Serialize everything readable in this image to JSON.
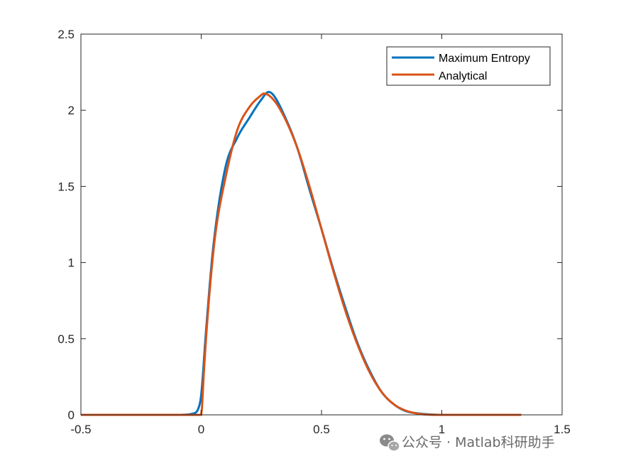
{
  "chart_data": {
    "type": "line",
    "title": "",
    "xlabel": "",
    "ylabel": "",
    "xlim": [
      -0.5,
      1.5
    ],
    "ylim": [
      0,
      2.5
    ],
    "xticks": [
      -0.5,
      0,
      0.5,
      1,
      1.5
    ],
    "xtick_labels": [
      "-0.5",
      "0",
      "0.5",
      "1",
      "1.5"
    ],
    "yticks": [
      0,
      0.5,
      1,
      1.5,
      2,
      2.5
    ],
    "ytick_labels": [
      "0",
      "0.5",
      "1",
      "1.5",
      "2",
      "2.5"
    ],
    "grid": false,
    "legend_position": "top-right",
    "series": [
      {
        "name": "Maximum Entropy",
        "color": "#0072BD",
        "x": [
          -0.5,
          -0.1,
          -0.03,
          -0.01,
          0,
          0.02,
          0.05,
          0.1,
          0.15,
          0.2,
          0.25,
          0.28,
          0.3,
          0.35,
          0.4,
          0.45,
          0.5,
          0.55,
          0.6,
          0.65,
          0.7,
          0.75,
          0.8,
          0.85,
          0.9,
          0.95,
          1.0,
          1.1,
          1.33
        ],
        "y": [
          0,
          0,
          0.01,
          0.05,
          0.13,
          0.55,
          1.1,
          1.62,
          1.82,
          1.95,
          2.07,
          2.12,
          2.1,
          1.95,
          1.75,
          1.48,
          1.22,
          0.95,
          0.7,
          0.47,
          0.29,
          0.15,
          0.07,
          0.025,
          0.01,
          0.003,
          0,
          0,
          0
        ]
      },
      {
        "name": "Analytical",
        "color": "#D95319",
        "x": [
          -0.5,
          -0.01,
          0,
          0.01,
          0.02,
          0.04,
          0.06,
          0.1,
          0.15,
          0.2,
          0.25,
          0.26,
          0.3,
          0.35,
          0.4,
          0.45,
          0.5,
          0.55,
          0.6,
          0.65,
          0.7,
          0.75,
          0.8,
          0.85,
          0.9,
          0.95,
          1.0,
          1.1,
          1.33
        ],
        "y": [
          0,
          0,
          0,
          0.25,
          0.5,
          0.9,
          1.2,
          1.55,
          1.87,
          2.02,
          2.1,
          2.11,
          2.07,
          1.94,
          1.75,
          1.5,
          1.22,
          0.94,
          0.68,
          0.46,
          0.28,
          0.15,
          0.07,
          0.028,
          0.008,
          0.001,
          0,
          0,
          0
        ]
      }
    ]
  },
  "watermark": {
    "text": "公众号 · Matlab科研助手",
    "icon": "wechat-icon"
  }
}
